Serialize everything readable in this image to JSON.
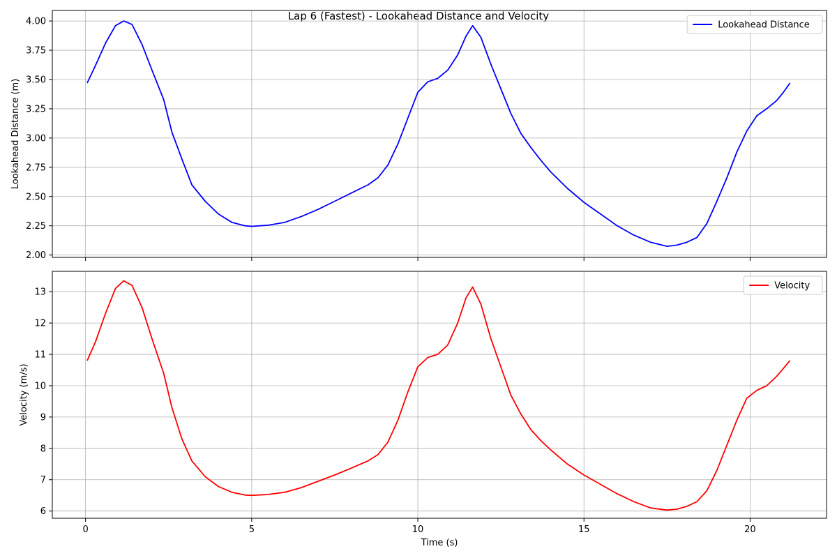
{
  "title": "Lap 6 (Fastest) - Lookahead Distance and Velocity",
  "chart_data": [
    {
      "type": "line",
      "ylabel": "Lookahead Distance (m)",
      "xlabel": "",
      "xlim": [
        -1.0,
        22.3
      ],
      "ylim": [
        1.98,
        4.09
      ],
      "xticks": [
        0,
        5,
        10,
        15,
        20
      ],
      "yticks": [
        2.0,
        2.25,
        2.5,
        2.75,
        3.0,
        3.25,
        3.5,
        3.75,
        4.0
      ],
      "ytick_labels": [
        "2.00",
        "2.25",
        "2.50",
        "2.75",
        "3.00",
        "3.25",
        "3.50",
        "3.75",
        "4.00"
      ],
      "show_xtick_labels": false,
      "grid": true,
      "legend": "upper-right",
      "series": [
        {
          "name": "Lookahead Distance",
          "color": "#0000ff",
          "x": [
            0.05,
            0.3,
            0.6,
            0.9,
            1.15,
            1.4,
            1.7,
            2.0,
            2.35,
            2.6,
            2.9,
            3.2,
            3.6,
            4.0,
            4.4,
            4.8,
            5.0,
            5.5,
            6.0,
            6.5,
            7.0,
            7.5,
            8.0,
            8.5,
            8.8,
            9.1,
            9.4,
            9.7,
            10.0,
            10.3,
            10.6,
            10.9,
            11.2,
            11.45,
            11.65,
            11.9,
            12.2,
            12.5,
            12.8,
            13.1,
            13.4,
            13.7,
            14.0,
            14.5,
            15.0,
            15.5,
            16.0,
            16.5,
            17.0,
            17.5,
            17.8,
            18.1,
            18.4,
            18.7,
            19.0,
            19.3,
            19.6,
            19.9,
            20.2,
            20.5,
            20.8,
            21.0,
            21.2
          ],
          "y": [
            3.47,
            3.62,
            3.81,
            3.96,
            4.0,
            3.97,
            3.8,
            3.58,
            3.33,
            3.05,
            2.82,
            2.6,
            2.46,
            2.35,
            2.28,
            2.25,
            2.245,
            2.255,
            2.28,
            2.33,
            2.39,
            2.46,
            2.53,
            2.6,
            2.66,
            2.77,
            2.95,
            3.17,
            3.39,
            3.48,
            3.51,
            3.58,
            3.71,
            3.87,
            3.96,
            3.86,
            3.63,
            3.42,
            3.21,
            3.04,
            2.92,
            2.81,
            2.71,
            2.57,
            2.45,
            2.35,
            2.25,
            2.17,
            2.11,
            2.075,
            2.085,
            2.11,
            2.15,
            2.27,
            2.46,
            2.66,
            2.88,
            3.06,
            3.19,
            3.25,
            3.32,
            3.39,
            3.47
          ]
        }
      ]
    },
    {
      "type": "line",
      "ylabel": "Velocity (m/s)",
      "xlabel": "Time (s)",
      "xlim": [
        -1.0,
        22.3
      ],
      "ylim": [
        5.77,
        13.65
      ],
      "xticks": [
        0,
        5,
        10,
        15,
        20
      ],
      "xtick_labels": [
        "0",
        "5",
        "10",
        "15",
        "20"
      ],
      "yticks": [
        6,
        7,
        8,
        9,
        10,
        11,
        12,
        13
      ],
      "ytick_labels": [
        "6",
        "7",
        "8",
        "9",
        "10",
        "11",
        "12",
        "13"
      ],
      "show_xtick_labels": true,
      "grid": true,
      "legend": "upper-right",
      "series": [
        {
          "name": "Velocity",
          "color": "#ff0000",
          "x": [
            0.05,
            0.3,
            0.6,
            0.9,
            1.15,
            1.4,
            1.7,
            2.0,
            2.35,
            2.6,
            2.9,
            3.2,
            3.6,
            4.0,
            4.4,
            4.8,
            5.0,
            5.5,
            6.0,
            6.5,
            7.0,
            7.5,
            8.0,
            8.5,
            8.8,
            9.1,
            9.4,
            9.7,
            10.0,
            10.3,
            10.6,
            10.9,
            11.2,
            11.45,
            11.65,
            11.9,
            12.2,
            12.5,
            12.8,
            13.1,
            13.4,
            13.7,
            14.0,
            14.5,
            15.0,
            15.5,
            16.0,
            16.5,
            17.0,
            17.5,
            17.8,
            18.1,
            18.4,
            18.7,
            19.0,
            19.3,
            19.6,
            19.9,
            20.2,
            20.5,
            20.8,
            21.0,
            21.2
          ],
          "y": [
            10.8,
            11.4,
            12.3,
            13.1,
            13.35,
            13.2,
            12.5,
            11.5,
            10.4,
            9.3,
            8.3,
            7.6,
            7.1,
            6.78,
            6.6,
            6.51,
            6.5,
            6.53,
            6.6,
            6.75,
            6.95,
            7.15,
            7.37,
            7.6,
            7.8,
            8.2,
            8.9,
            9.8,
            10.6,
            10.9,
            11.0,
            11.3,
            12.0,
            12.8,
            13.15,
            12.6,
            11.5,
            10.6,
            9.7,
            9.1,
            8.6,
            8.25,
            7.95,
            7.5,
            7.15,
            6.85,
            6.55,
            6.3,
            6.1,
            6.03,
            6.06,
            6.15,
            6.3,
            6.65,
            7.3,
            8.1,
            8.9,
            9.6,
            9.85,
            10.0,
            10.3,
            10.55,
            10.8
          ]
        }
      ]
    }
  ]
}
